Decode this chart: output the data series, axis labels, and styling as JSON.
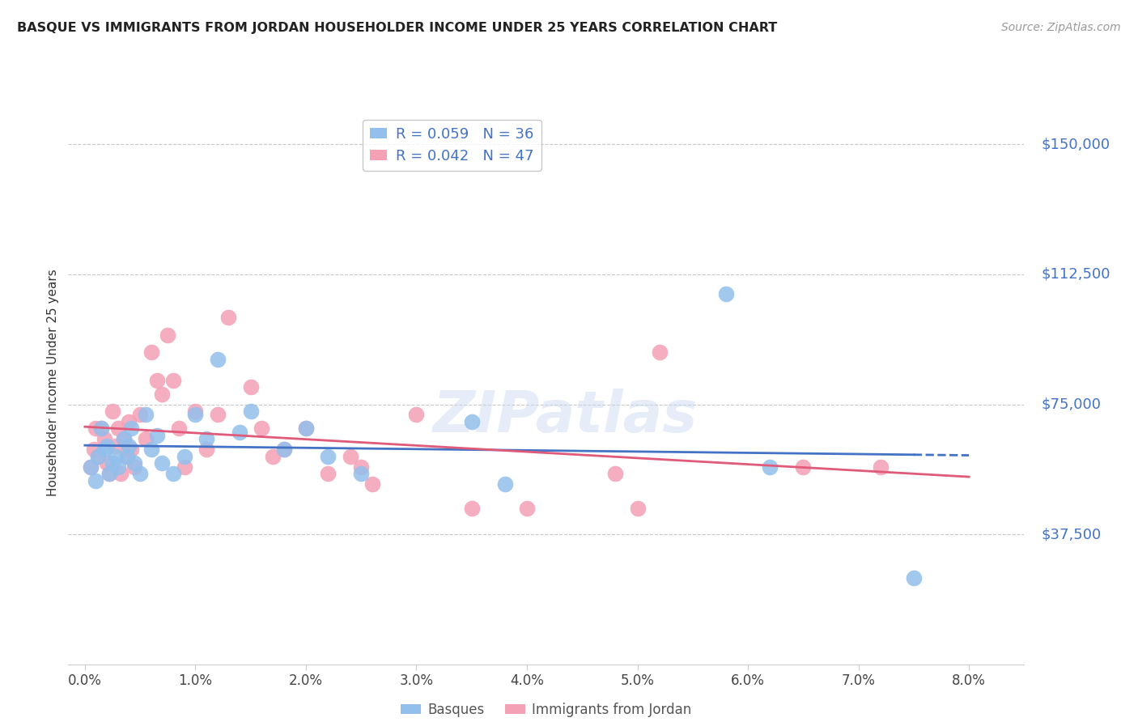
{
  "title": "BASQUE VS IMMIGRANTS FROM JORDAN HOUSEHOLDER INCOME UNDER 25 YEARS CORRELATION CHART",
  "source": "Source: ZipAtlas.com",
  "ylabel": "Householder Income Under 25 years",
  "xlabel_ticks": [
    "0.0%",
    "1.0%",
    "2.0%",
    "3.0%",
    "4.0%",
    "5.0%",
    "6.0%",
    "7.0%",
    "8.0%"
  ],
  "xlabel_vals": [
    0.0,
    1.0,
    2.0,
    3.0,
    4.0,
    5.0,
    6.0,
    7.0,
    8.0
  ],
  "ytick_labels": [
    "$150,000",
    "$112,500",
    "$75,000",
    "$37,500"
  ],
  "ytick_vals": [
    150000,
    112500,
    75000,
    37500
  ],
  "ylim": [
    0,
    162500
  ],
  "xlim": [
    -0.15,
    8.5
  ],
  "legend1_R": "0.059",
  "legend1_N": "36",
  "legend2_R": "0.042",
  "legend2_N": "47",
  "basque_color": "#92bfec",
  "jordan_color": "#f4a0b5",
  "basque_line_color": "#4472c4",
  "jordan_line_color": "#e05a7a",
  "background_color": "#ffffff",
  "grid_color": "#c8c8c8",
  "title_color": "#222222",
  "ytick_color": "#4472c4",
  "source_color": "#999999",
  "basque_x": [
    0.05,
    0.1,
    0.12,
    0.15,
    0.18,
    0.2,
    0.22,
    0.25,
    0.28,
    0.3,
    0.35,
    0.38,
    0.4,
    0.42,
    0.45,
    0.5,
    0.55,
    0.6,
    0.65,
    0.7,
    0.8,
    0.9,
    1.0,
    1.1,
    1.2,
    1.4,
    1.5,
    1.8,
    2.0,
    2.2,
    2.5,
    3.5,
    3.8,
    5.8,
    6.2,
    7.5
  ],
  "basque_y": [
    57000,
    53000,
    60000,
    68000,
    62000,
    63000,
    55000,
    58000,
    60000,
    57000,
    65000,
    60000,
    63000,
    68000,
    58000,
    55000,
    72000,
    62000,
    66000,
    58000,
    55000,
    60000,
    72000,
    65000,
    88000,
    67000,
    73000,
    62000,
    68000,
    60000,
    55000,
    70000,
    52000,
    107000,
    57000,
    25000
  ],
  "jordan_x": [
    0.05,
    0.08,
    0.1,
    0.12,
    0.15,
    0.18,
    0.2,
    0.22,
    0.25,
    0.28,
    0.3,
    0.32,
    0.35,
    0.38,
    0.4,
    0.42,
    0.45,
    0.5,
    0.55,
    0.6,
    0.65,
    0.7,
    0.75,
    0.8,
    0.85,
    0.9,
    1.0,
    1.1,
    1.2,
    1.3,
    1.5,
    1.6,
    1.7,
    1.8,
    2.0,
    2.2,
    2.4,
    2.5,
    2.6,
    3.0,
    3.5,
    4.0,
    4.8,
    5.0,
    5.2,
    6.5,
    7.2
  ],
  "jordan_y": [
    57000,
    62000,
    68000,
    60000,
    68000,
    65000,
    58000,
    55000,
    73000,
    63000,
    68000,
    55000,
    65000,
    60000,
    70000,
    62000,
    57000,
    72000,
    65000,
    90000,
    82000,
    78000,
    95000,
    82000,
    68000,
    57000,
    73000,
    62000,
    72000,
    100000,
    80000,
    68000,
    60000,
    62000,
    68000,
    55000,
    60000,
    57000,
    52000,
    72000,
    45000,
    45000,
    55000,
    45000,
    90000,
    57000,
    57000
  ]
}
